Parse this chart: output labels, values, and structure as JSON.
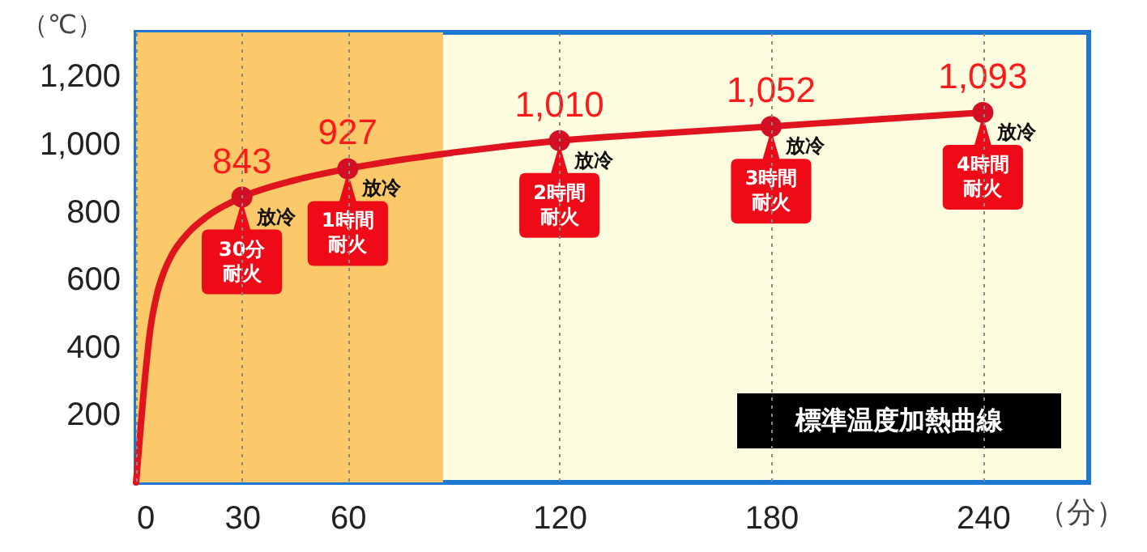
{
  "chart_data": {
    "type": "line",
    "xlabel": "（分）",
    "ylabel": "（℃）",
    "xlim": [
      0,
      270
    ],
    "ylim": [
      0,
      1330
    ],
    "xticks": [
      0,
      30,
      60,
      120,
      180,
      240
    ],
    "yticks": [
      200,
      400,
      600,
      800,
      {
        "value": 1000,
        "label": "1,000"
      },
      {
        "value": 1200,
        "label": "1,200"
      }
    ],
    "grid": "x",
    "series": [
      {
        "type": "line",
        "color": "#e0141e",
        "x": [
          0,
          2,
          4,
          6,
          8,
          10,
          15,
          20,
          30,
          45,
          60,
          90,
          120,
          150,
          180,
          210,
          240
        ],
        "values": [
          0,
          250,
          450,
          560,
          625,
          670,
          740,
          785,
          843,
          893,
          927,
          975,
          1010,
          1032,
          1052,
          1073,
          1093
        ]
      },
      {
        "type": "scatter",
        "color": "#d40f23",
        "marker": "circle",
        "x": [
          30,
          60,
          120,
          180,
          240
        ],
        "values": [
          843,
          927,
          1010,
          1052,
          1093
        ],
        "value_labels": [
          "843",
          "927",
          "1,010",
          "1,052",
          "1,093"
        ]
      }
    ],
    "bands": [
      {
        "axis": "x",
        "from": 0,
        "to": 87,
        "color": "#fbc96a"
      }
    ],
    "annotations": [
      {
        "text": "30分耐火",
        "x": 30,
        "y": 843
      },
      {
        "text": "放冷",
        "x": 30,
        "y": 843
      },
      {
        "text": "1時間耐火",
        "x": 60,
        "y": 927
      },
      {
        "text": "放冷",
        "x": 60,
        "y": 927
      },
      {
        "text": "2時間耐火",
        "x": 120,
        "y": 1010
      },
      {
        "text": "放冷",
        "x": 120,
        "y": 1010
      },
      {
        "text": "3時間耐火",
        "x": 180,
        "y": 1052
      },
      {
        "text": "放冷",
        "x": 180,
        "y": 1052
      },
      {
        "text": "4時間耐火",
        "x": 240,
        "y": 1093
      },
      {
        "text": "放冷",
        "x": 240,
        "y": 1093
      },
      "標準温度加熱曲線"
    ]
  }
}
